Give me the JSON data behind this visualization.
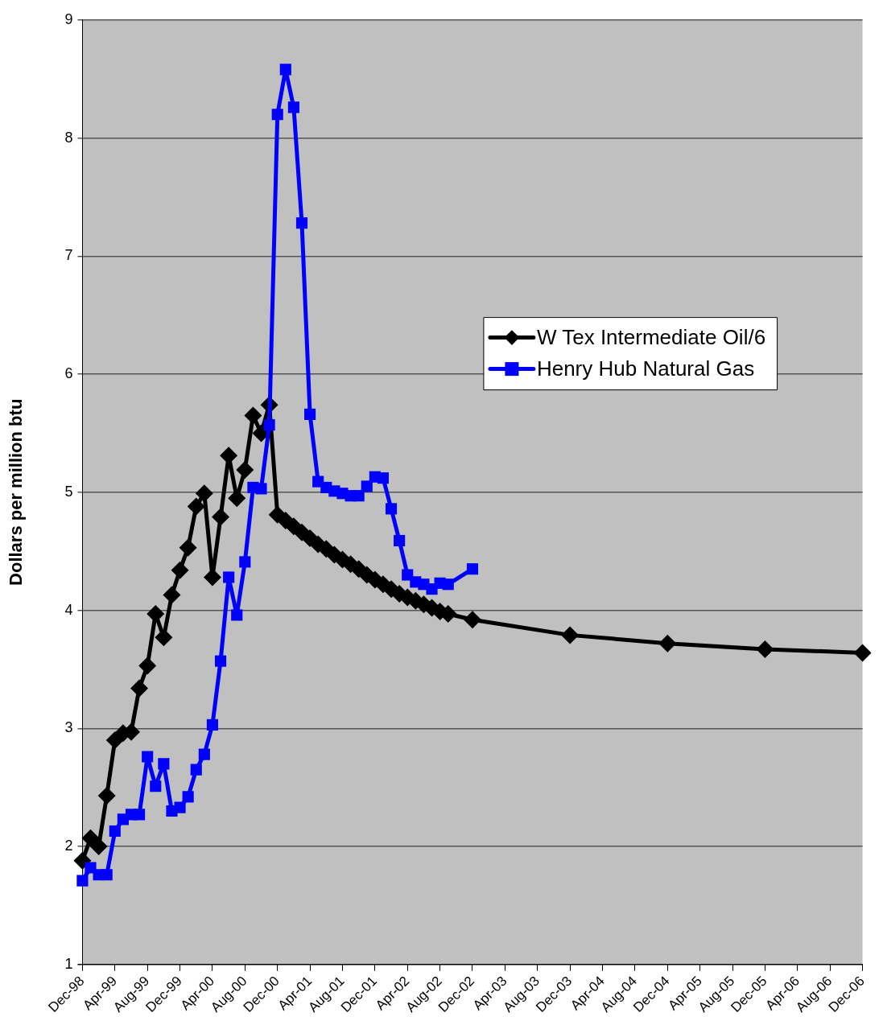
{
  "chart_data": {
    "type": "line",
    "ylabel": "Dollars per million btu",
    "categories": [
      "Dec-98",
      null,
      null,
      null,
      "Apr-99",
      null,
      null,
      null,
      "Aug-99",
      null,
      null,
      null,
      "Dec-99",
      null,
      null,
      null,
      "Apr-00",
      null,
      null,
      null,
      "Aug-00",
      null,
      null,
      null,
      "Dec-00",
      null,
      null,
      null,
      "Apr-01",
      null,
      null,
      null,
      "Aug-01",
      null,
      null,
      null,
      "Dec-01",
      null,
      null,
      null,
      "Apr-02",
      null,
      null,
      null,
      "Aug-02",
      null,
      null,
      null,
      "Dec-02",
      null,
      null,
      null,
      "Apr-03",
      null,
      null,
      null,
      "Aug-03",
      null,
      null,
      null,
      "Dec-03",
      null,
      null,
      null,
      "Apr-04",
      null,
      null,
      null,
      "Aug-04",
      null,
      null,
      null,
      "Dec-04",
      null,
      null,
      null,
      "Apr-05",
      null,
      null,
      null,
      "Aug-05",
      null,
      null,
      null,
      "Dec-05",
      null,
      null,
      null,
      "Apr-06",
      null,
      null,
      null,
      "Aug-06",
      null,
      null,
      null,
      "Dec-06"
    ],
    "series": [
      {
        "name": "W Tex Intermediate Oil/6",
        "color": "#000000",
        "marker": "diamond",
        "values": [
          1.88,
          2.07,
          2.0,
          2.43,
          2.9,
          2.96,
          2.97,
          3.34,
          3.53,
          3.97,
          3.77,
          4.13,
          4.34,
          4.53,
          4.88,
          4.99,
          4.28,
          4.79,
          5.31,
          4.95,
          5.19,
          5.65,
          5.5,
          5.74,
          4.81,
          4.76,
          4.71,
          4.66,
          4.61,
          4.56,
          4.52,
          4.47,
          4.43,
          4.39,
          4.35,
          4.3,
          4.26,
          4.22,
          4.18,
          4.14,
          4.11,
          4.08,
          4.05,
          4.02,
          3.99,
          3.97,
          null,
          null,
          3.92,
          null,
          null,
          null,
          null,
          null,
          null,
          null,
          null,
          null,
          null,
          null,
          3.79,
          null,
          null,
          null,
          null,
          null,
          null,
          null,
          null,
          null,
          null,
          null,
          3.72,
          null,
          null,
          null,
          null,
          null,
          null,
          null,
          null,
          null,
          null,
          null,
          3.67,
          null,
          null,
          null,
          null,
          null,
          null,
          null,
          null,
          null,
          null,
          null,
          3.64
        ]
      },
      {
        "name": "Henry Hub Natural Gas",
        "color": "#0000ff",
        "marker": "square",
        "values": [
          1.71,
          1.82,
          1.76,
          1.76,
          2.13,
          2.23,
          2.27,
          2.27,
          2.76,
          2.51,
          2.7,
          2.3,
          2.33,
          2.42,
          2.65,
          2.78,
          3.03,
          3.57,
          4.28,
          3.96,
          4.41,
          5.04,
          5.03,
          5.57,
          8.2,
          8.58,
          8.26,
          7.28,
          5.66,
          5.09,
          5.04,
          5.01,
          4.99,
          4.97,
          4.97,
          5.05,
          5.13,
          5.12,
          4.86,
          4.59,
          4.3,
          4.24,
          4.22,
          4.18,
          4.23,
          4.22,
          null,
          null,
          4.35,
          null,
          null,
          null,
          null,
          null,
          null,
          null,
          null,
          null,
          null,
          null,
          null,
          null,
          null,
          null,
          null,
          null,
          null,
          null,
          null,
          null,
          null,
          null,
          null,
          null,
          null,
          null,
          null,
          null,
          null,
          null,
          null,
          null,
          null,
          null,
          null,
          null,
          null,
          null,
          null,
          null,
          null,
          null,
          null,
          null,
          null,
          null,
          null
        ]
      }
    ],
    "ylim": [
      1,
      9
    ],
    "yticks": [
      1,
      2,
      3,
      4,
      5,
      6,
      7,
      8,
      9
    ],
    "grid": "y",
    "legend": "right",
    "line_style": "solid"
  }
}
